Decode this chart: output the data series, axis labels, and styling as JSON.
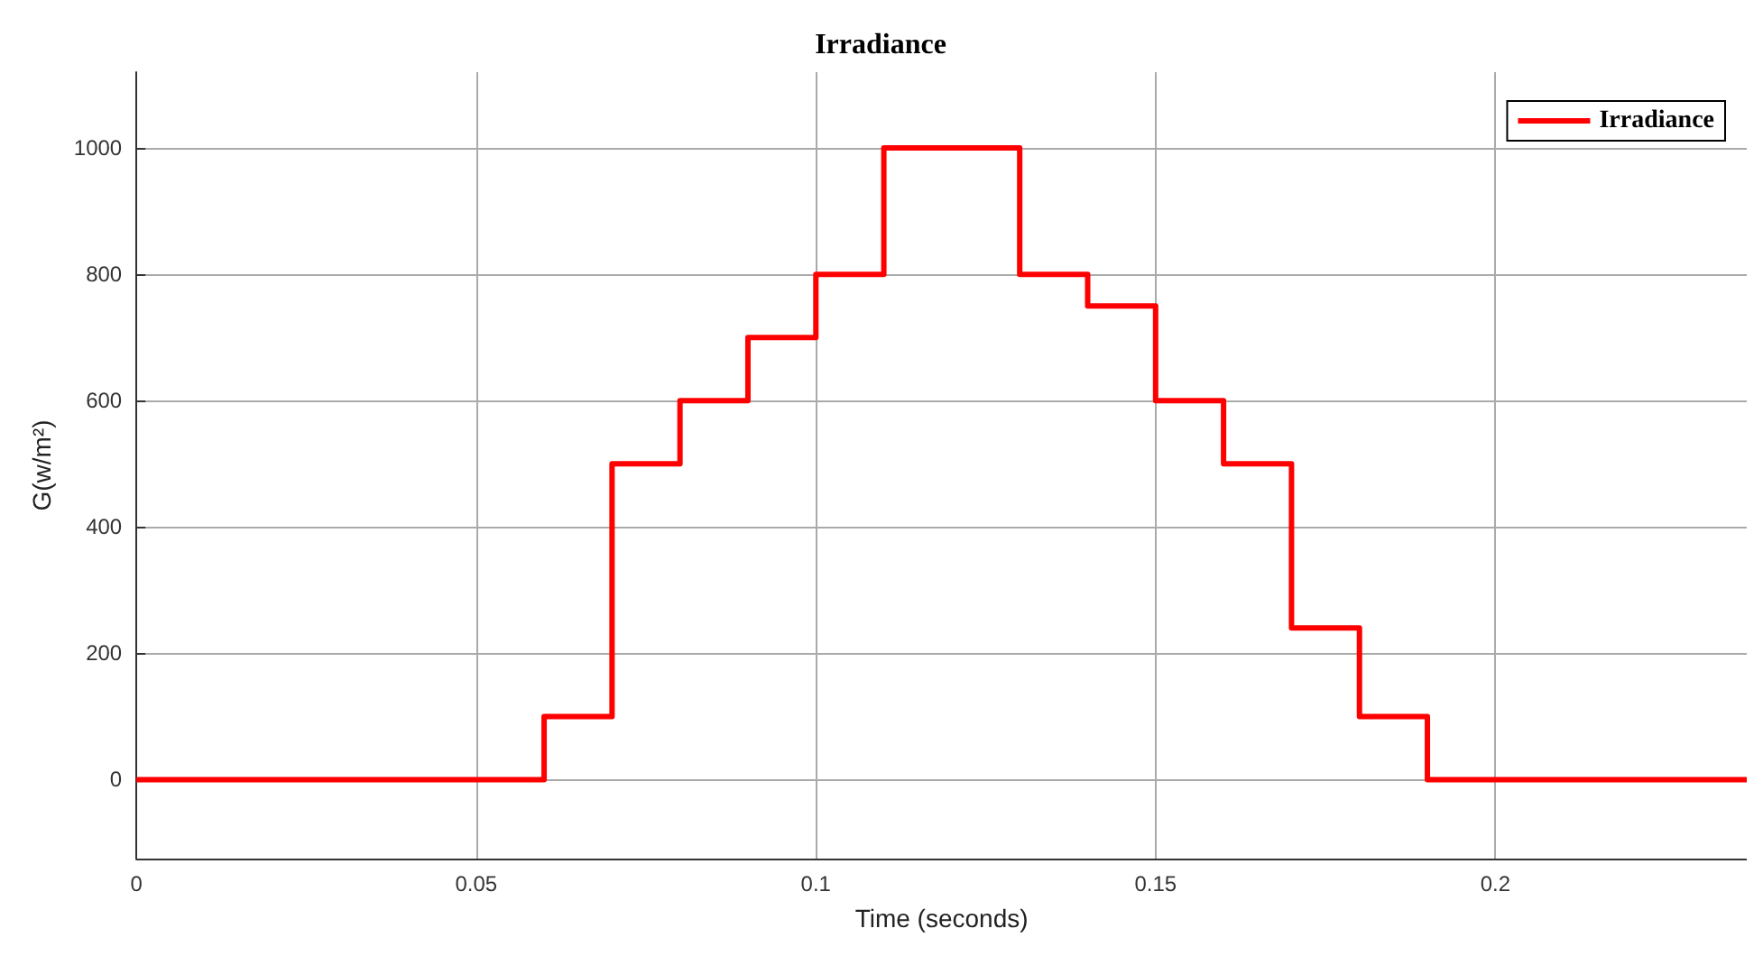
{
  "chart_data": {
    "type": "step",
    "title": "Irradiance",
    "xlabel": "Time (seconds)",
    "ylabel": "G(w/m²)",
    "x": [
      0,
      0.06,
      0.07,
      0.08,
      0.09,
      0.1,
      0.11,
      0.13,
      0.14,
      0.15,
      0.16,
      0.17,
      0.18,
      0.19,
      0.237
    ],
    "series": [
      {
        "name": "Irradiance",
        "color": "#ff0000",
        "values": [
          0,
          100,
          500,
          600,
          700,
          800,
          1000,
          800,
          750,
          600,
          500,
          240,
          100,
          0,
          0
        ]
      }
    ],
    "xlim": [
      0,
      0.237
    ],
    "xticks": [
      0,
      0.05,
      0.1,
      0.15,
      0.2
    ],
    "ylim": [
      -125,
      1120
    ],
    "yticks": [
      0,
      200,
      400,
      600,
      800,
      1000
    ],
    "grid": true,
    "legend": "top right",
    "marker": "none",
    "line_style": "solid"
  }
}
